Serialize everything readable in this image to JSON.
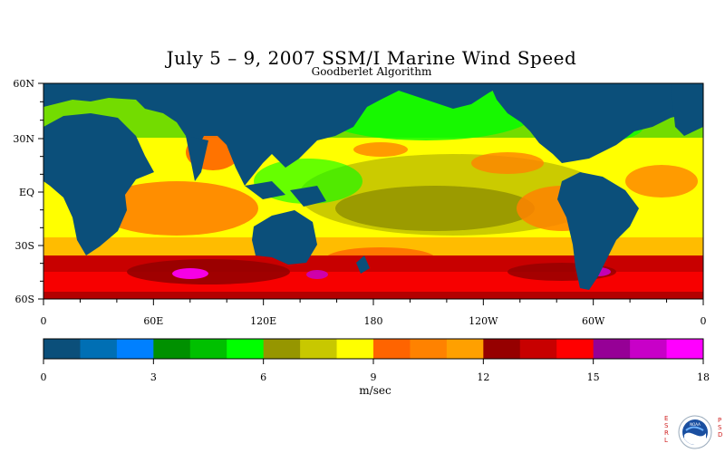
{
  "title": "July 5 – 9, 2007 SSM/I Marine Wind Speed",
  "subtitle": "Goodberlet Algorithm",
  "map": {
    "lat_labels": [
      "60N",
      "30N",
      "EQ",
      "30S",
      "60S"
    ],
    "lon_labels": [
      "0",
      "60E",
      "120E",
      "180",
      "120W",
      "60W",
      "0"
    ],
    "land_color": "#0b4f7a"
  },
  "colorbar": {
    "colors": [
      "#0b4f7a",
      "#006fb4",
      "#0080ff",
      "#009000",
      "#00c000",
      "#00ff00",
      "#969600",
      "#c8c800",
      "#ffff00",
      "#ff6400",
      "#ff8200",
      "#ffa000",
      "#960000",
      "#c80000",
      "#ff0000",
      "#960096",
      "#c800c8",
      "#ff00ff"
    ],
    "tick_labels": [
      "0",
      "3",
      "6",
      "9",
      "12",
      "15",
      "18"
    ],
    "units": "m/sec"
  },
  "logo": {
    "left_text": "ESRL",
    "right_text": "PSD",
    "badge_text": "NOAA"
  }
}
